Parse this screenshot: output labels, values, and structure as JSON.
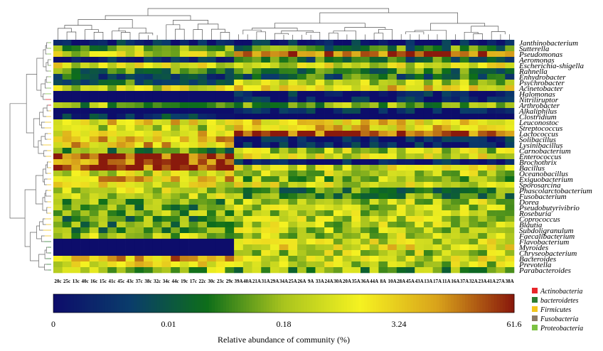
{
  "chart_data": {
    "type": "heatmap",
    "rows": [
      "Janthinobacterium",
      "Sutterella",
      "Pseudomonas",
      "Aeromonas",
      "Escherichia-shigella",
      "Rahnella",
      "Enhydrobacter",
      "Psychrobacter",
      "Acinetobacter",
      "Halomonas",
      "Nitriliruptor",
      "Arthrobacter",
      "Alkaliphilus",
      "Clostridium",
      "Leuconostoc",
      "Streptococcus",
      "Lactococcus",
      "Solibacillus",
      "Lysinibacillus",
      "Carnobacterium",
      "Enterococcus",
      "Brochothrix",
      "Bacillus",
      "Oceanobacillus",
      "Exiguobacterium",
      "Sporosarcina",
      "Phascolarctobacterium",
      "Fusobacterium",
      "Dorea",
      "Pseudobutyrivibrio",
      "Roseburia",
      "Coprococcus",
      "Blautia",
      "Subdoligranulum",
      "Faecalibacterium",
      "Flavobacterium",
      "Myroides",
      "Chryseobacterium",
      "Bacteroides",
      "Prevotella",
      "Parabacteroides"
    ],
    "columns": [
      "20c",
      "25c",
      "13c",
      "40c",
      "16c",
      "15c",
      "41c",
      "45c",
      "43c",
      "37c",
      "38c",
      "32c",
      "34c",
      "44c",
      "19c",
      "17c",
      "22c",
      "30c",
      "23c",
      "29c",
      "39A",
      "40A",
      "21A",
      "31A",
      "29A",
      "34A",
      "25A",
      "26A",
      "9A",
      "33A",
      "24A",
      "30A",
      "20A",
      "35A",
      "36A",
      "44A",
      "8A",
      "10A",
      "28A",
      "45A",
      "43A",
      "13A",
      "17A",
      "11A",
      "16A",
      "37A",
      "32A",
      "23A",
      "41A",
      "27A",
      "38A"
    ],
    "row_phylum": [
      "Proteobacteria",
      "Proteobacteria",
      "Proteobacteria",
      "Proteobacteria",
      "Proteobacteria",
      "Proteobacteria",
      "Proteobacteria",
      "Proteobacteria",
      "Proteobacteria",
      "Proteobacteria",
      "Actinobacteria",
      "Actinobacteria",
      "Firmicutes",
      "Firmicutes",
      "Firmicutes",
      "Firmicutes",
      "Firmicutes",
      "Firmicutes",
      "Firmicutes",
      "Firmicutes",
      "Firmicutes",
      "Firmicutes",
      "Firmicutes",
      "Firmicutes",
      "Firmicutes",
      "Firmicutes",
      "Firmicutes",
      "Fusobacteria",
      "Firmicutes",
      "Firmicutes",
      "Firmicutes",
      "Firmicutes",
      "Firmicutes",
      "Firmicutes",
      "Firmicutes",
      "bacteroidetes",
      "bacteroidetes",
      "bacteroidetes",
      "bacteroidetes",
      "bacteroidetes",
      "bacteroidetes"
    ],
    "group_c_levels": [
      0.1,
      0.45,
      0.6,
      0.05,
      0.62,
      0.35,
      0.22,
      0.3,
      0.6,
      0.0,
      0.0,
      0.45,
      0.0,
      0.15,
      0.7,
      0.55,
      0.7,
      0.75,
      0.75,
      0.4,
      0.95,
      0.9,
      0.95,
      0.6,
      0.75,
      0.65,
      0.55,
      0.55,
      0.45,
      0.4,
      0.45,
      0.4,
      0.4,
      0.4,
      0.5,
      0.0,
      0.0,
      0.0,
      0.8,
      0.65,
      0.5
    ],
    "group_a_levels": [
      0.05,
      0.35,
      0.95,
      0.3,
      0.62,
      0.35,
      0.3,
      0.55,
      0.7,
      0.05,
      0.05,
      0.45,
      0.05,
      0.0,
      0.7,
      0.72,
      0.95,
      0.05,
      0.05,
      0.55,
      0.62,
      0.05,
      0.6,
      0.55,
      0.5,
      0.6,
      0.35,
      0.4,
      0.55,
      0.55,
      0.55,
      0.55,
      0.55,
      0.55,
      0.55,
      0.6,
      0.65,
      0.55,
      0.6,
      0.55,
      0.45
    ],
    "colorbar": {
      "ticks": [
        "0",
        "0.01",
        "0.18",
        "3.24",
        "61.6"
      ],
      "label": "Relative abundance of community (%)"
    },
    "legend": [
      {
        "label": "Actinobacteria",
        "color": "#e8262b"
      },
      {
        "label": "bacteroidetes",
        "color": "#2e7d32"
      },
      {
        "label": "Firmicutes",
        "color": "#f3c61a"
      },
      {
        "label": "Fusobacteria",
        "color": "#8a7a66"
      },
      {
        "label": "Proteobacteria",
        "color": "#7cc242"
      }
    ],
    "colormap": [
      "#0d0d6b",
      "#0a3d6b",
      "#0e6e1a",
      "#a9c41e",
      "#f5f221",
      "#d9a41b",
      "#8a1a0c"
    ]
  }
}
